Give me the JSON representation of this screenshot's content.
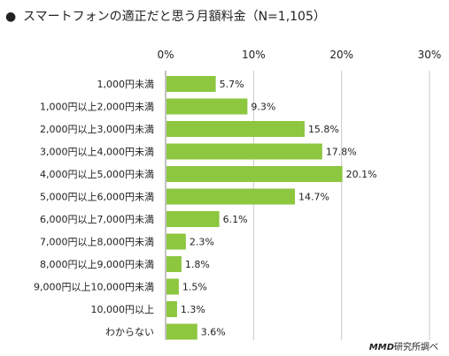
{
  "title_bullet": "●",
  "chart_data": {
    "type": "bar",
    "orientation": "horizontal",
    "title": "スマートフォンの適正だと思う月額料金（N=1,105）",
    "xlim": [
      0,
      30
    ],
    "x_ticks": [
      0,
      10,
      20,
      30
    ],
    "x_tick_labels": [
      "0%",
      "10%",
      "20%",
      "30%"
    ],
    "grid": true,
    "bar_color": "#8dc63f",
    "categories": [
      "1,000円未満",
      "1,000円以上2,000円未満",
      "2,000円以上3,000円未満",
      "3,000円以上4,000円未満",
      "4,000円以上5,000円未満",
      "5,000円以上6,000円未満",
      "6,000円以上7,000円未満",
      "7,000円以上8,000円未満",
      "8,000円以上9,000円未満",
      "9,000円以上10,000円未満",
      "10,000円以上",
      "わからない"
    ],
    "values": [
      5.7,
      9.3,
      15.8,
      17.8,
      20.1,
      14.7,
      6.1,
      2.3,
      1.8,
      1.5,
      1.3,
      3.6
    ],
    "value_labels": [
      "5.7%",
      "9.3%",
      "15.8%",
      "17.8%",
      "20.1%",
      "14.7%",
      "6.1%",
      "2.3%",
      "1.8%",
      "1.5%",
      "1.3%",
      "3.6%"
    ]
  },
  "source": {
    "brand": "MMD",
    "text": "研究所調べ"
  }
}
